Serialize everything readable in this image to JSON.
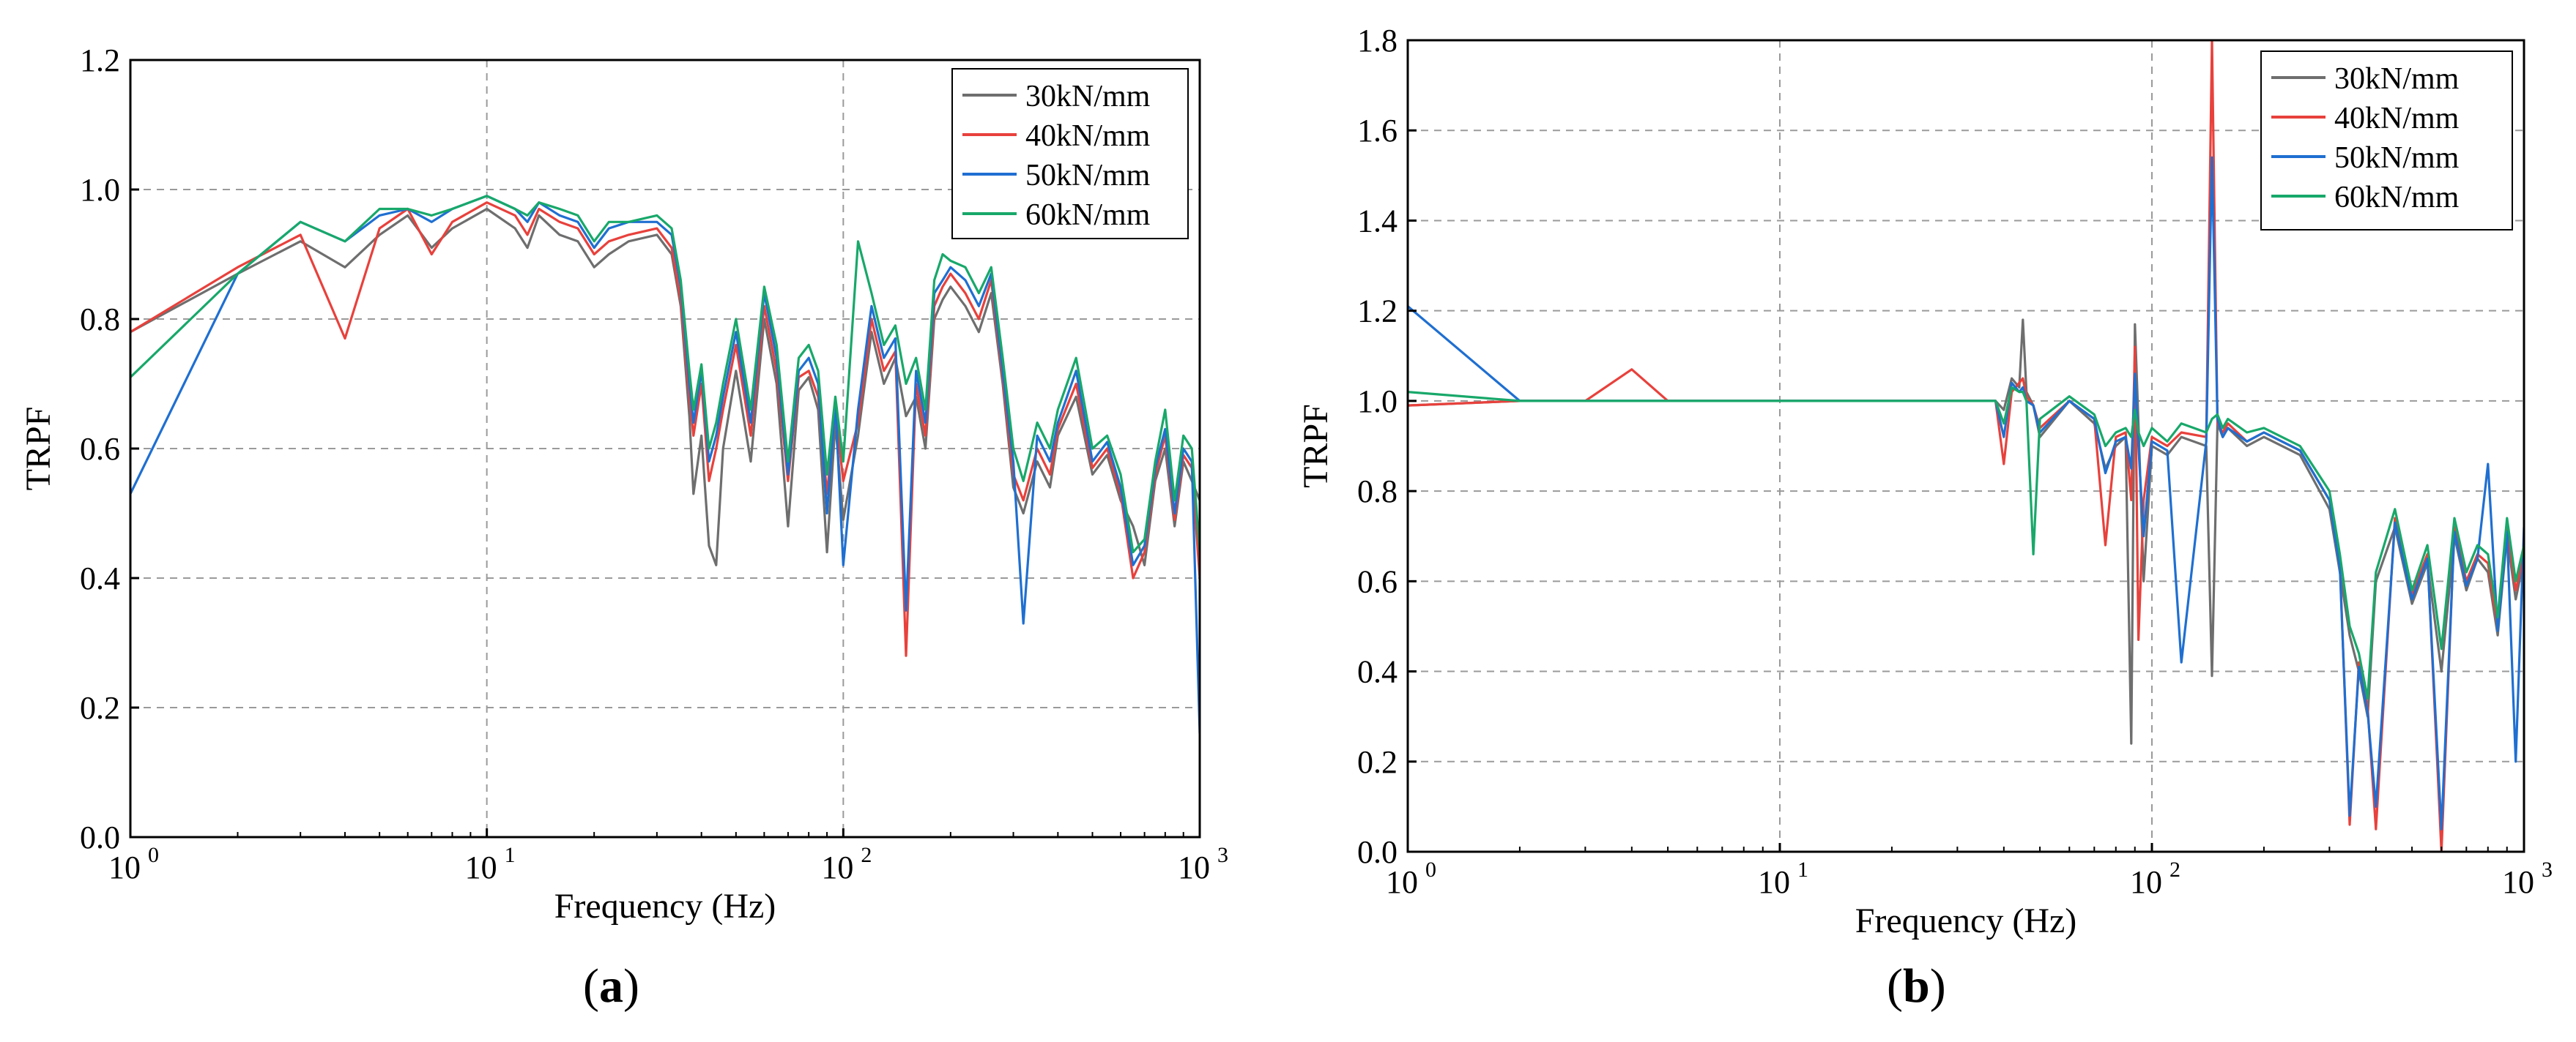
{
  "chart_data": [
    {
      "panel_label": "a",
      "type": "line",
      "xscale": "log",
      "xlabel": "Frequency (Hz)",
      "ylabel": "TRPF",
      "xlim": [
        1,
        1000
      ],
      "ylim": [
        0.0,
        1.2
      ],
      "xticks": [
        {
          "value": 1,
          "base": "10",
          "exp": "0"
        },
        {
          "value": 10,
          "base": "10",
          "exp": "1"
        },
        {
          "value": 100,
          "base": "10",
          "exp": "2"
        },
        {
          "value": 1000,
          "base": "10",
          "exp": "3"
        }
      ],
      "yticks": [
        "0.0",
        "0.2",
        "0.4",
        "0.6",
        "0.8",
        "1.0",
        "1.2"
      ],
      "grid": true,
      "legend_position": "top-right",
      "series": [
        {
          "name": "30kN/mm",
          "color": "#6e6e6e",
          "x": [
            1,
            2,
            3,
            4,
            5,
            6,
            7,
            8,
            10,
            12,
            13,
            14,
            16,
            18,
            20,
            22,
            25,
            30,
            33,
            35,
            37,
            38,
            40,
            42,
            44,
            46,
            50,
            55,
            60,
            65,
            70,
            75,
            80,
            85,
            90,
            95,
            100,
            110,
            120,
            130,
            140,
            150,
            160,
            170,
            180,
            190,
            200,
            220,
            240,
            260,
            280,
            300,
            320,
            350,
            380,
            400,
            450,
            500,
            550,
            600,
            650,
            700,
            750,
            800,
            850,
            900,
            950,
            1000
          ],
          "y": [
            0.78,
            0.87,
            0.92,
            0.88,
            0.93,
            0.96,
            0.91,
            0.94,
            0.97,
            0.94,
            0.91,
            0.96,
            0.93,
            0.92,
            0.88,
            0.9,
            0.92,
            0.93,
            0.9,
            0.82,
            0.65,
            0.53,
            0.62,
            0.45,
            0.42,
            0.6,
            0.72,
            0.58,
            0.8,
            0.7,
            0.48,
            0.69,
            0.71,
            0.66,
            0.44,
            0.64,
            0.49,
            0.62,
            0.78,
            0.7,
            0.74,
            0.65,
            0.68,
            0.6,
            0.8,
            0.83,
            0.85,
            0.82,
            0.78,
            0.84,
            0.7,
            0.54,
            0.5,
            0.58,
            0.54,
            0.62,
            0.68,
            0.56,
            0.59,
            0.52,
            0.48,
            0.42,
            0.55,
            0.6,
            0.48,
            0.58,
            0.55,
            0.52
          ]
        },
        {
          "name": "40kN/mm",
          "color": "#e8413c",
          "x": [
            1,
            2,
            3,
            4,
            5,
            6,
            7,
            8,
            10,
            12,
            13,
            14,
            16,
            18,
            20,
            22,
            25,
            30,
            33,
            35,
            37,
            38,
            40,
            42,
            44,
            46,
            50,
            55,
            60,
            65,
            70,
            75,
            80,
            85,
            90,
            95,
            100,
            110,
            120,
            130,
            140,
            150,
            160,
            170,
            180,
            190,
            200,
            220,
            240,
            260,
            280,
            300,
            320,
            350,
            380,
            400,
            450,
            500,
            550,
            600,
            650,
            700,
            750,
            800,
            850,
            900,
            950,
            1000
          ],
          "y": [
            0.78,
            0.88,
            0.93,
            0.77,
            0.94,
            0.97,
            0.9,
            0.95,
            0.98,
            0.96,
            0.93,
            0.97,
            0.95,
            0.94,
            0.9,
            0.92,
            0.93,
            0.94,
            0.91,
            0.83,
            0.68,
            0.62,
            0.7,
            0.55,
            0.6,
            0.66,
            0.76,
            0.62,
            0.82,
            0.72,
            0.55,
            0.71,
            0.72,
            0.68,
            0.53,
            0.66,
            0.55,
            0.64,
            0.8,
            0.72,
            0.75,
            0.28,
            0.7,
            0.62,
            0.82,
            0.85,
            0.87,
            0.84,
            0.8,
            0.86,
            0.71,
            0.56,
            0.52,
            0.6,
            0.56,
            0.63,
            0.7,
            0.57,
            0.6,
            0.53,
            0.4,
            0.44,
            0.56,
            0.62,
            0.49,
            0.59,
            0.57,
            0.4
          ]
        },
        {
          "name": "50kN/mm",
          "color": "#1f6fd1",
          "x": [
            1,
            2,
            3,
            4,
            5,
            6,
            7,
            8,
            10,
            12,
            13,
            14,
            16,
            18,
            20,
            22,
            25,
            30,
            33,
            35,
            37,
            38,
            40,
            42,
            44,
            46,
            50,
            55,
            60,
            65,
            70,
            75,
            80,
            85,
            90,
            95,
            100,
            110,
            120,
            130,
            140,
            150,
            160,
            170,
            180,
            190,
            200,
            220,
            240,
            260,
            280,
            300,
            320,
            350,
            380,
            400,
            450,
            500,
            550,
            600,
            650,
            700,
            750,
            800,
            850,
            900,
            950,
            1000
          ],
          "y": [
            0.53,
            0.87,
            0.95,
            0.92,
            0.96,
            0.97,
            0.95,
            0.97,
            0.99,
            0.97,
            0.95,
            0.98,
            0.96,
            0.95,
            0.91,
            0.94,
            0.95,
            0.95,
            0.93,
            0.85,
            0.7,
            0.64,
            0.72,
            0.58,
            0.62,
            0.68,
            0.78,
            0.64,
            0.84,
            0.74,
            0.56,
            0.72,
            0.74,
            0.7,
            0.5,
            0.67,
            0.42,
            0.66,
            0.82,
            0.74,
            0.77,
            0.35,
            0.72,
            0.64,
            0.84,
            0.86,
            0.88,
            0.86,
            0.82,
            0.87,
            0.72,
            0.58,
            0.33,
            0.62,
            0.58,
            0.64,
            0.72,
            0.58,
            0.61,
            0.54,
            0.42,
            0.45,
            0.57,
            0.63,
            0.5,
            0.6,
            0.58,
            0.16
          ]
        },
        {
          "name": "60kN/mm",
          "color": "#18a86a",
          "x": [
            1,
            2,
            3,
            4,
            5,
            6,
            7,
            8,
            10,
            12,
            13,
            14,
            16,
            18,
            20,
            22,
            25,
            30,
            33,
            35,
            37,
            38,
            40,
            42,
            44,
            46,
            50,
            55,
            60,
            65,
            70,
            75,
            80,
            85,
            90,
            95,
            100,
            110,
            120,
            130,
            140,
            150,
            160,
            170,
            180,
            190,
            200,
            220,
            240,
            260,
            280,
            300,
            320,
            350,
            380,
            400,
            450,
            500,
            550,
            600,
            650,
            700,
            750,
            800,
            850,
            900,
            950,
            1000
          ],
          "y": [
            0.71,
            0.87,
            0.95,
            0.92,
            0.97,
            0.97,
            0.96,
            0.97,
            0.99,
            0.97,
            0.96,
            0.98,
            0.97,
            0.96,
            0.92,
            0.95,
            0.95,
            0.96,
            0.94,
            0.86,
            0.72,
            0.66,
            0.73,
            0.6,
            0.64,
            0.7,
            0.8,
            0.66,
            0.85,
            0.76,
            0.58,
            0.74,
            0.76,
            0.72,
            0.56,
            0.68,
            0.58,
            0.92,
            0.84,
            0.76,
            0.79,
            0.7,
            0.74,
            0.66,
            0.86,
            0.9,
            0.89,
            0.88,
            0.84,
            0.88,
            0.74,
            0.6,
            0.55,
            0.64,
            0.6,
            0.66,
            0.74,
            0.6,
            0.62,
            0.56,
            0.44,
            0.46,
            0.58,
            0.66,
            0.52,
            0.62,
            0.6,
            0.44
          ]
        }
      ]
    },
    {
      "panel_label": "b",
      "type": "line",
      "xscale": "log",
      "xlabel": "Frequency (Hz)",
      "ylabel": "TRPF",
      "xlim": [
        1,
        1000
      ],
      "ylim": [
        0.0,
        1.8
      ],
      "xticks": [
        {
          "value": 1,
          "base": "10",
          "exp": "0"
        },
        {
          "value": 10,
          "base": "10",
          "exp": "1"
        },
        {
          "value": 100,
          "base": "10",
          "exp": "2"
        },
        {
          "value": 1000,
          "base": "10",
          "exp": "3"
        }
      ],
      "yticks": [
        "0.0",
        "0.2",
        "0.4",
        "0.6",
        "0.8",
        "1.0",
        "1.2",
        "1.4",
        "1.6",
        "1.8"
      ],
      "grid": true,
      "legend_position": "top-right",
      "series": [
        {
          "name": "30kN/mm",
          "color": "#6e6e6e",
          "x": [
            1,
            2,
            3,
            4,
            5,
            7,
            10,
            20,
            30,
            38,
            40,
            42,
            44,
            45,
            46,
            48,
            50,
            60,
            70,
            75,
            80,
            85,
            88,
            90,
            92,
            95,
            100,
            110,
            120,
            140,
            145,
            150,
            155,
            160,
            180,
            200,
            250,
            300,
            320,
            340,
            360,
            380,
            400,
            450,
            500,
            550,
            600,
            650,
            700,
            750,
            800,
            850,
            900,
            950,
            1000
          ],
          "y": [
            0.99,
            1.0,
            1.0,
            1.0,
            1.0,
            1.0,
            1.0,
            1.0,
            1.0,
            1.0,
            0.98,
            1.05,
            1.03,
            1.18,
            1.02,
            0.99,
            0.92,
            1.0,
            0.95,
            0.85,
            0.9,
            0.92,
            0.24,
            1.17,
            0.95,
            0.6,
            0.9,
            0.88,
            0.92,
            0.9,
            0.39,
            0.95,
            0.92,
            0.94,
            0.9,
            0.92,
            0.88,
            0.76,
            0.62,
            0.48,
            0.4,
            0.3,
            0.6,
            0.72,
            0.55,
            0.64,
            0.4,
            0.7,
            0.58,
            0.65,
            0.62,
            0.48,
            0.7,
            0.56,
            0.65
          ]
        },
        {
          "name": "40kN/mm",
          "color": "#e8413c",
          "x": [
            1,
            2,
            3,
            4,
            5,
            7,
            10,
            20,
            30,
            38,
            40,
            42,
            44,
            45,
            46,
            48,
            50,
            60,
            70,
            75,
            80,
            85,
            88,
            90,
            92,
            95,
            100,
            110,
            120,
            140,
            145,
            150,
            155,
            160,
            180,
            200,
            250,
            300,
            320,
            340,
            360,
            380,
            400,
            450,
            500,
            550,
            600,
            650,
            700,
            750,
            800,
            850,
            900,
            950,
            1000
          ],
          "y": [
            0.99,
            1.0,
            1.0,
            1.07,
            1.0,
            1.0,
            1.0,
            1.0,
            1.0,
            1.0,
            0.86,
            1.02,
            1.04,
            1.05,
            1.01,
            0.99,
            0.94,
            1.0,
            0.96,
            0.68,
            0.92,
            0.93,
            0.78,
            1.12,
            0.47,
            0.78,
            0.92,
            0.9,
            0.93,
            0.92,
            1.8,
            0.95,
            0.93,
            0.95,
            0.91,
            0.93,
            0.89,
            0.78,
            0.64,
            0.06,
            0.42,
            0.32,
            0.05,
            0.74,
            0.57,
            0.66,
            0.0,
            0.72,
            0.6,
            0.66,
            0.64,
            0.5,
            0.72,
            0.58,
            0.66
          ]
        },
        {
          "name": "50kN/mm",
          "color": "#1f6fd1",
          "x": [
            1,
            2,
            3,
            4,
            5,
            7,
            10,
            20,
            30,
            38,
            40,
            42,
            44,
            45,
            46,
            48,
            50,
            60,
            70,
            75,
            80,
            85,
            88,
            90,
            92,
            95,
            100,
            110,
            120,
            140,
            145,
            150,
            155,
            160,
            180,
            200,
            250,
            300,
            320,
            340,
            360,
            380,
            400,
            450,
            500,
            550,
            600,
            650,
            700,
            750,
            800,
            850,
            900,
            950,
            1000
          ],
          "y": [
            1.21,
            1.0,
            1.0,
            1.0,
            1.0,
            1.0,
            1.0,
            1.0,
            1.0,
            1.0,
            0.92,
            1.04,
            1.02,
            1.03,
            1.0,
            0.99,
            0.93,
            1.0,
            0.96,
            0.84,
            0.91,
            0.92,
            0.85,
            1.06,
            0.9,
            0.7,
            0.91,
            0.89,
            0.42,
            0.91,
            1.54,
            0.96,
            0.92,
            0.94,
            0.91,
            0.93,
            0.89,
            0.78,
            0.63,
            0.08,
            0.41,
            0.31,
            0.1,
            0.73,
            0.56,
            0.65,
            0.05,
            0.71,
            0.59,
            0.65,
            0.86,
            0.49,
            0.71,
            0.2,
            0.72
          ]
        },
        {
          "name": "60kN/mm",
          "color": "#18a86a",
          "x": [
            1,
            2,
            3,
            4,
            5,
            7,
            10,
            20,
            30,
            38,
            40,
            42,
            44,
            45,
            46,
            48,
            50,
            60,
            70,
            75,
            80,
            85,
            88,
            90,
            92,
            95,
            100,
            110,
            120,
            140,
            145,
            150,
            155,
            160,
            180,
            200,
            250,
            300,
            320,
            340,
            360,
            380,
            400,
            450,
            500,
            550,
            600,
            650,
            700,
            750,
            800,
            850,
            900,
            950,
            1000
          ],
          "y": [
            1.02,
            1.0,
            1.0,
            1.0,
            1.0,
            1.0,
            1.0,
            1.0,
            1.0,
            1.0,
            0.95,
            1.03,
            1.02,
            1.02,
            1.0,
            0.66,
            0.96,
            1.01,
            0.97,
            0.9,
            0.93,
            0.94,
            0.92,
            0.98,
            0.93,
            0.9,
            0.94,
            0.91,
            0.95,
            0.93,
            0.96,
            0.97,
            0.94,
            0.96,
            0.93,
            0.94,
            0.9,
            0.8,
            0.66,
            0.5,
            0.44,
            0.34,
            0.62,
            0.76,
            0.58,
            0.68,
            0.45,
            0.74,
            0.62,
            0.68,
            0.66,
            0.52,
            0.74,
            0.6,
            0.68
          ]
        }
      ]
    }
  ]
}
